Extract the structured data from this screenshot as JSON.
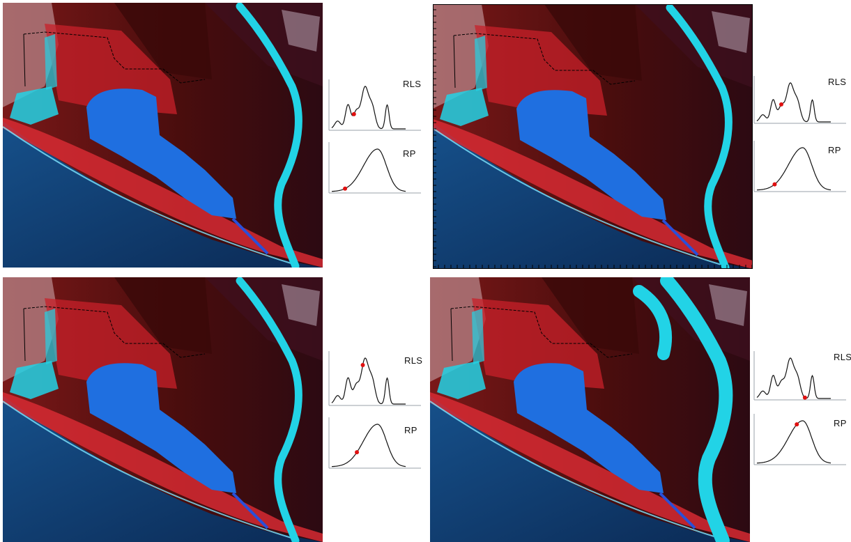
{
  "panels": [
    {
      "id": "top-left",
      "curve_labels": [
        "RLS",
        "RP"
      ],
      "rls_point": 0.3,
      "rp_point": 0.18,
      "river_width": "normal"
    },
    {
      "id": "top-right",
      "curve_labels": [
        "RLS",
        "RP"
      ],
      "rls_point": 0.33,
      "rp_point": 0.24,
      "river_width": "normal"
    },
    {
      "id": "bottom-left",
      "curve_labels": [
        "RLS",
        "RP"
      ],
      "rls_point": 0.42,
      "rp_point": 0.34,
      "river_width": "normal"
    },
    {
      "id": "bottom-right",
      "curve_labels": [
        "RLS",
        "RP"
      ],
      "rls_point": 0.65,
      "rp_point": 0.54,
      "river_width": "wide"
    }
  ],
  "colors": {
    "flood_water": "#1f6fe0",
    "river": "#22d3e6",
    "ocean": "#0b2a55",
    "vegetation": "#c8202a",
    "marker": "#e01010"
  }
}
